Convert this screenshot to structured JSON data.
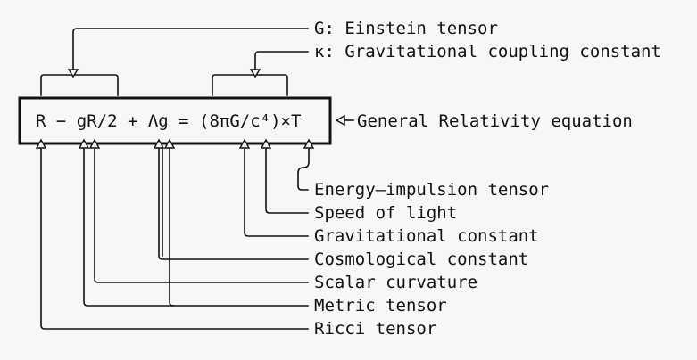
{
  "equation": "R − gR/2 + Λg = (8πG/c⁴)×T",
  "equation_label": "General Relativity equation",
  "top_labels": [
    "G: Einstein tensor",
    "κ: Gravitational coupling constant"
  ],
  "bottom_labels": [
    "Energy–impulsion tensor",
    "Speed of light",
    "Gravitational constant",
    "Cosmological constant",
    "Scalar curvature",
    "Metric tensor",
    "Ricci tensor"
  ],
  "colors": {
    "background": "#f7f7f7",
    "ink": "#111111"
  }
}
